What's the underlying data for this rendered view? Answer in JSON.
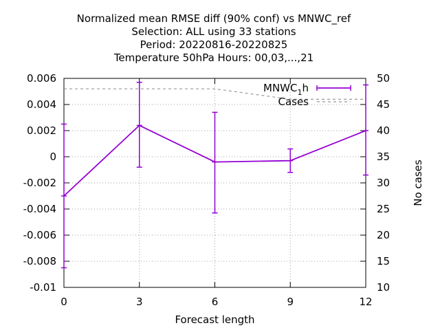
{
  "chart_data": {
    "type": "line",
    "title_lines": [
      "Normalized mean RMSE diff (90% conf) vs MNWC_ref",
      "Selection: ALL using    33 stations",
      "Period: 20220816-20220825",
      "Temperature 50hPa   Hours:  00,03,...,21"
    ],
    "xlabel": "Forecast length",
    "ylabel": "",
    "y2label": "No cases",
    "x": [
      0,
      3,
      6,
      9,
      12
    ],
    "xlim": [
      0,
      12
    ],
    "ylim": [
      -0.01,
      0.006
    ],
    "y2lim": [
      10,
      50
    ],
    "xticks": [
      "0",
      "3",
      "6",
      "9",
      "12"
    ],
    "yticks": [
      "0.006",
      "0.004",
      "0.002",
      "0",
      "-0.002",
      "-0.004",
      "-0.006",
      "-0.008",
      "-0.01"
    ],
    "y2ticks": [
      "50",
      "45",
      "40",
      "35",
      "30",
      "25",
      "20",
      "15",
      "10"
    ],
    "grid": true,
    "legend_position": "top-right",
    "series": [
      {
        "name": "MNWC_1h",
        "legend_main": "MNWC",
        "legend_sub": "1",
        "legend_tail": "h",
        "color": "#9400d3",
        "values": [
          -0.003,
          0.0024,
          -0.0004,
          -0.0003,
          0.002
        ],
        "err_low": [
          -0.0085,
          -0.0008,
          -0.0043,
          -0.0012,
          -0.0014
        ],
        "err_high": [
          0.0025,
          0.0057,
          0.0034,
          0.0006,
          0.0055
        ]
      },
      {
        "name": "Cases",
        "color": "#999999",
        "dashed": true,
        "axis": "y2",
        "values": [
          48,
          48,
          48,
          46,
          46
        ]
      }
    ]
  }
}
